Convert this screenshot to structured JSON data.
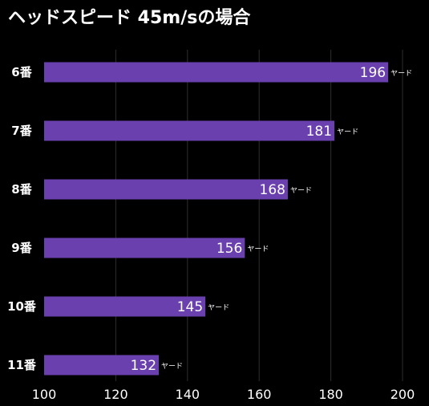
{
  "title": "ヘッドスピード 45m/sの場合",
  "colors": {
    "background": "#000000",
    "bar": "#6a3fae",
    "grid": "#2e2e2e",
    "text": "#ffffff"
  },
  "chart_data": {
    "type": "bar",
    "orientation": "horizontal",
    "title": "ヘッドスピード 45m/sの場合",
    "categories": [
      "6番",
      "7番",
      "8番",
      "9番",
      "10番",
      "11番"
    ],
    "values": [
      196,
      181,
      168,
      156,
      145,
      132
    ],
    "value_unit": "ヤード",
    "xlim": [
      100,
      200
    ],
    "xticks": [
      100,
      120,
      140,
      160,
      180,
      200
    ],
    "grid": true,
    "legend": "none"
  }
}
